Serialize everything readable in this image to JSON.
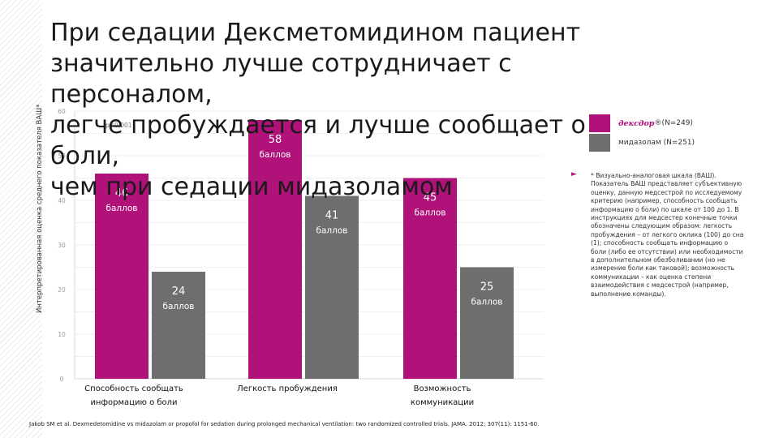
{
  "slide": {
    "title": "При седации Дексметомидином пациент\nзначительно лучше сотрудничает с персоналом,\nлегче пробуждается и лучше сообщает о боли,\nчем при седации мидазоламом",
    "note": "* Визуально-аналоговая шкала (ВАШ). Показатель ВАШ представляет субъективную оценку, данную медсестрой по исследуемому критерию (например, способность сообщать информацию о боли) по шкале от 100 до 1. В инструкциях для медсестер конечные точки обозначены следующим образом: легкость пробуждения – от легкого оклика (100) до сна (1); способность сообщать информацию о боли (либо ее отсутствии) или необходимости в дополнительном обезболивании (но не измерение боли как таковой); возможность коммуникации – как оценка степени взаимодействия с медсестрой (например, выполнение команды).",
    "reference": "Jakob SM et al. Dexmedetomidine vs midazolam or propofol for sedation during prolonged mechanical ventilation: two randomized controlled trials. JAMA. 2012; 307(11): 1151-60."
  },
  "legend": {
    "dex_brand": "дексдор",
    "dex_sup": "®",
    "dex_n": " (N=249)",
    "mid_label": "мидазолам (N=251)"
  },
  "colors": {
    "dex": "#b0127a",
    "mid": "#6e6e6e"
  },
  "chart_data": {
    "type": "bar",
    "ylabel": "Интерпретированная оценка среднего показателя ВАШ*",
    "ylim": [
      0,
      60
    ],
    "yticks": [
      0,
      10,
      20,
      30,
      40,
      50,
      60
    ],
    "categories": [
      "Способность сообщать\nинформацию о боли",
      "Легкость пробуждения",
      "Возможность\nкоммуникации"
    ],
    "series": [
      {
        "name": "дексдор® (N=249)",
        "values": [
          46,
          58,
          45
        ]
      },
      {
        "name": "мидазолам (N=251)",
        "values": [
          24,
          41,
          25
        ]
      }
    ],
    "value_suffix": "баллов",
    "annotation": "p<0,001"
  }
}
